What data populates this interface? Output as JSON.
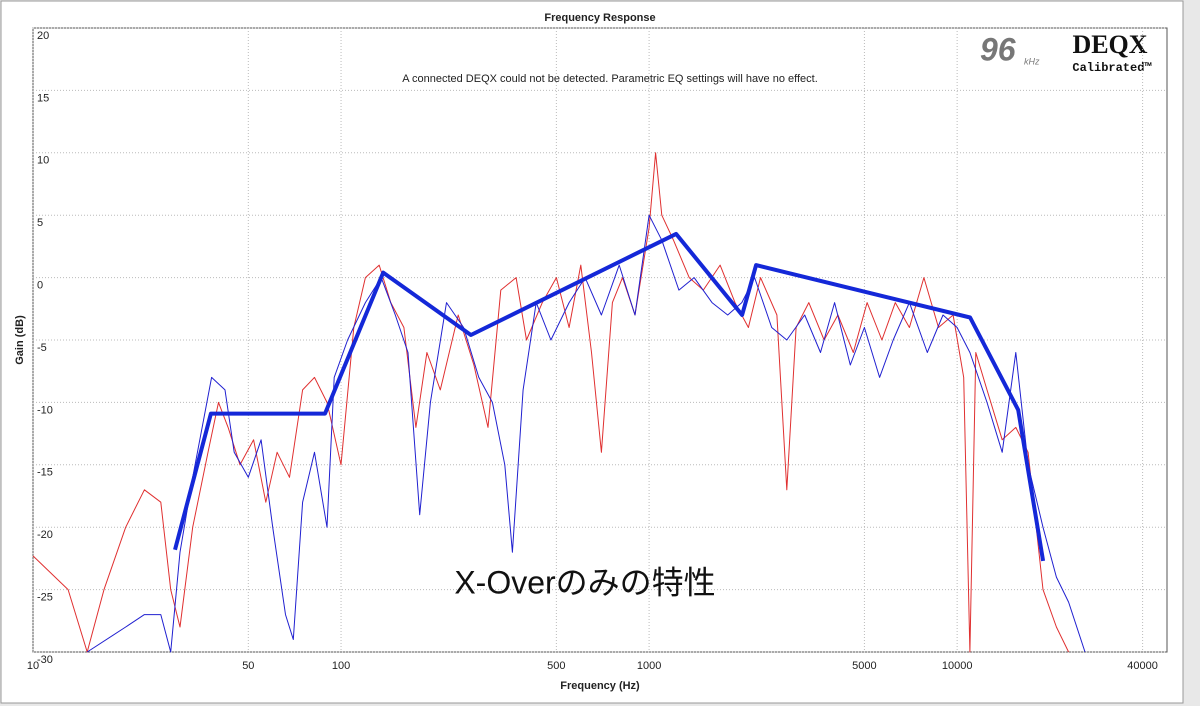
{
  "chart_data": {
    "type": "line",
    "title": "Frequency Response",
    "subtitle": "A connected DEQX could not be detected.  Parametric EQ settings will have no effect.",
    "x_label": "Frequency (Hz)",
    "y_label": "Gain (dB)",
    "logo": {
      "rate": "96",
      "unit": "kHz",
      "brand": "DEQX",
      "tag": "Calibrated™"
    },
    "annotation": "X-Overのみの特性",
    "xscale": "log",
    "grid": true,
    "xlim": [
      10,
      48000
    ],
    "xticks": [
      10,
      50,
      100,
      500,
      1000,
      5000,
      10000,
      40000
    ],
    "ylim": [
      -30,
      20
    ],
    "yticks": [
      20,
      15,
      10,
      5,
      0,
      -5,
      -10,
      -15,
      -20,
      -25,
      -30
    ],
    "series": [
      {
        "color": "#e03030",
        "width": 1,
        "x": [
          10,
          13,
          15,
          17,
          20,
          23,
          26,
          28,
          30,
          33,
          37,
          40,
          43,
          47,
          52,
          57,
          62,
          68,
          75,
          82,
          90,
          100,
          110,
          120,
          133,
          145,
          160,
          175,
          190,
          210,
          240,
          270,
          300,
          330,
          370,
          400,
          450,
          500,
          550,
          600,
          650,
          700,
          760,
          820,
          900,
          1000,
          1050,
          1100,
          1200,
          1350,
          1500,
          1700,
          1900,
          2100,
          2300,
          2600,
          2800,
          3000,
          3300,
          3700,
          4100,
          4600,
          5100,
          5700,
          6300,
          7000,
          7800,
          8700,
          9700,
          10500,
          11000,
          11500,
          12500,
          14000,
          15500,
          17000,
          19000,
          21000,
          23000
        ],
        "values": [
          -22.3,
          -25,
          -30,
          -25,
          -20,
          -17,
          -18,
          -25,
          -28,
          -20,
          -14,
          -10,
          -12,
          -15,
          -13,
          -18,
          -14,
          -16,
          -9,
          -8,
          -10,
          -15,
          -4,
          0,
          1,
          -2,
          -4,
          -12,
          -6,
          -9,
          -3,
          -7,
          -12,
          -1,
          0,
          -5,
          -2,
          0,
          -4,
          1,
          -6,
          -14,
          -2,
          0,
          -3,
          4,
          10,
          5,
          3,
          0,
          -1,
          1,
          -2,
          -4,
          0,
          -3,
          -17,
          -4,
          -2,
          -5,
          -3,
          -6,
          -2,
          -5,
          -2,
          -4,
          0,
          -4,
          -3,
          -8,
          -30,
          -6,
          -9,
          -13,
          -12,
          -14,
          -25,
          -28,
          -30
        ]
      },
      {
        "color": "#2020d0",
        "width": 1,
        "x": [
          15,
          20,
          23,
          26,
          28,
          30,
          33,
          38,
          42,
          45,
          50,
          55,
          60,
          66,
          70,
          75,
          82,
          90,
          95,
          105,
          120,
          135,
          150,
          165,
          180,
          195,
          220,
          250,
          280,
          310,
          340,
          360,
          390,
          430,
          480,
          550,
          620,
          700,
          800,
          900,
          1000,
          1100,
          1250,
          1400,
          1600,
          1800,
          2000,
          2200,
          2500,
          2800,
          3200,
          3600,
          4000,
          4500,
          5000,
          5600,
          6200,
          7000,
          8000,
          9000,
          10000,
          11000,
          12500,
          14000,
          15500,
          17000,
          19000,
          21000,
          23000,
          26000
        ],
        "values": [
          -30,
          -28,
          -27,
          -27,
          -30,
          -22,
          -16,
          -8,
          -9,
          -14,
          -16,
          -13,
          -20,
          -27,
          -29,
          -18,
          -14,
          -20,
          -8,
          -5,
          -2,
          0,
          -3,
          -6,
          -19,
          -10,
          -2,
          -4,
          -8,
          -10,
          -15,
          -22,
          -9,
          -2,
          -5,
          -2,
          0,
          -3,
          1,
          -3,
          5,
          3,
          -1,
          0,
          -2,
          -3,
          -2,
          0,
          -4,
          -5,
          -3,
          -6,
          -2,
          -7,
          -4,
          -8,
          -5,
          -2,
          -6,
          -3,
          -4,
          -6,
          -10,
          -14,
          -6,
          -15,
          -20,
          -24,
          -26,
          -30
        ]
      },
      {
        "color": "#1428d8",
        "width": 4,
        "x": [
          28.9,
          37.8,
          88.7,
          137,
          264,
          1224,
          2004,
          2225,
          11020,
          15780,
          19010
        ],
        "values": [
          -21.8,
          -10.9,
          -10.9,
          0.4,
          -4.6,
          3.5,
          -3,
          1,
          -3.2,
          -10.6,
          -22.7
        ]
      }
    ]
  }
}
